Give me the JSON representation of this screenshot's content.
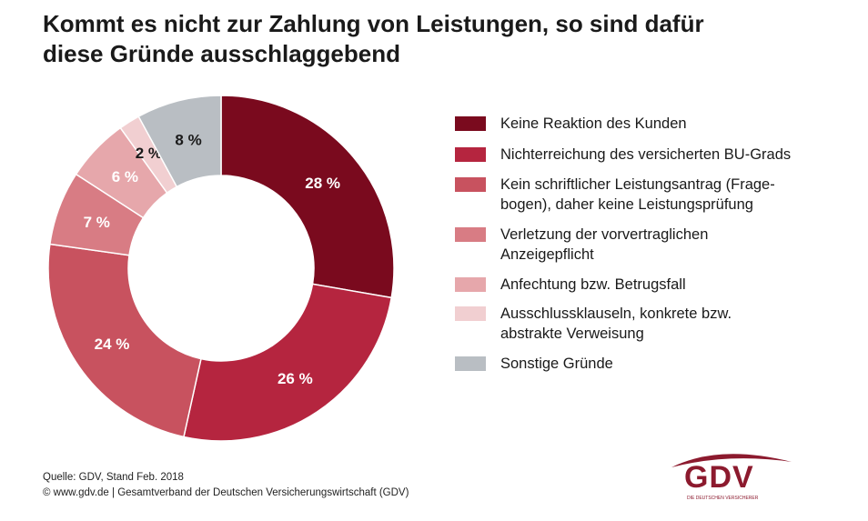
{
  "title": {
    "line1": "Kommt es nicht zur Zahlung von Leistungen, so sind dafür",
    "line2": "diese Gründe ausschlaggebend"
  },
  "chart_data": {
    "type": "pie",
    "variant": "donut",
    "title": "Kommt es nicht zur Zahlung von Leistungen, so sind dafür diese Gründe ausschlaggebend",
    "legend_position": "right",
    "slices": [
      {
        "label": "Keine Reaktion des Kunden",
        "value": 28,
        "display": "28 %",
        "color": "#7a0a1e"
      },
      {
        "label": "Nichterreichung des versicherten BU-Grads",
        "value": 26,
        "display": "26 %",
        "color": "#b5253f"
      },
      {
        "label": "Kein schriftlicher Leistungsantrag (Fragebogen), daher keine Leistungsprüfung",
        "value": 24,
        "display": "24 %",
        "color": "#c8525f"
      },
      {
        "label": "Verletzung der vorvertraglichen Anzeigepflicht",
        "value": 7,
        "display": "7 %",
        "color": "#d87c84"
      },
      {
        "label": "Anfechtung bzw. Betrugsfall",
        "value": 6,
        "display": "6 %",
        "color": "#e6a7ab"
      },
      {
        "label": "Ausschlussklauseln, konkrete bzw. abstrakte Verweisung",
        "value": 2,
        "display": "2 %",
        "color": "#f1cfd1"
      },
      {
        "label": "Sonstige Gründe",
        "value": 8,
        "display": "8 %",
        "color": "#b9bec3"
      }
    ]
  },
  "legend": [
    {
      "lines": [
        "Keine Reaktion des Kunden"
      ],
      "color": "#7a0a1e"
    },
    {
      "lines": [
        "Nichterreichung des versicherten BU-Grads"
      ],
      "color": "#b5253f"
    },
    {
      "lines": [
        "Kein schriftlicher Leistungsantrag (Frage-",
        "bogen), daher keine Leistungsprüfung"
      ],
      "color": "#c8525f"
    },
    {
      "lines": [
        "Verletzung der vorvertraglichen",
        "Anzeigepflicht"
      ],
      "color": "#d87c84"
    },
    {
      "lines": [
        "Anfechtung bzw. Betrugsfall"
      ],
      "color": "#e6a7ab"
    },
    {
      "lines": [
        "Ausschlussklauseln, konkrete bzw.",
        "abstrakte Verweisung"
      ],
      "color": "#f1cfd1"
    },
    {
      "lines": [
        "Sonstige Gründe"
      ],
      "color": "#b9bec3"
    }
  ],
  "footer": {
    "source": "Quelle: GDV, Stand Feb. 2018",
    "copyright": "© www.gdv.de | Gesamtverband der Deutschen Versicherungswirtschaft (GDV)"
  },
  "logo": {
    "text": "GDV",
    "subtext": "DIE DEUTSCHEN VERSICHERER",
    "color": "#8c1a2e"
  }
}
